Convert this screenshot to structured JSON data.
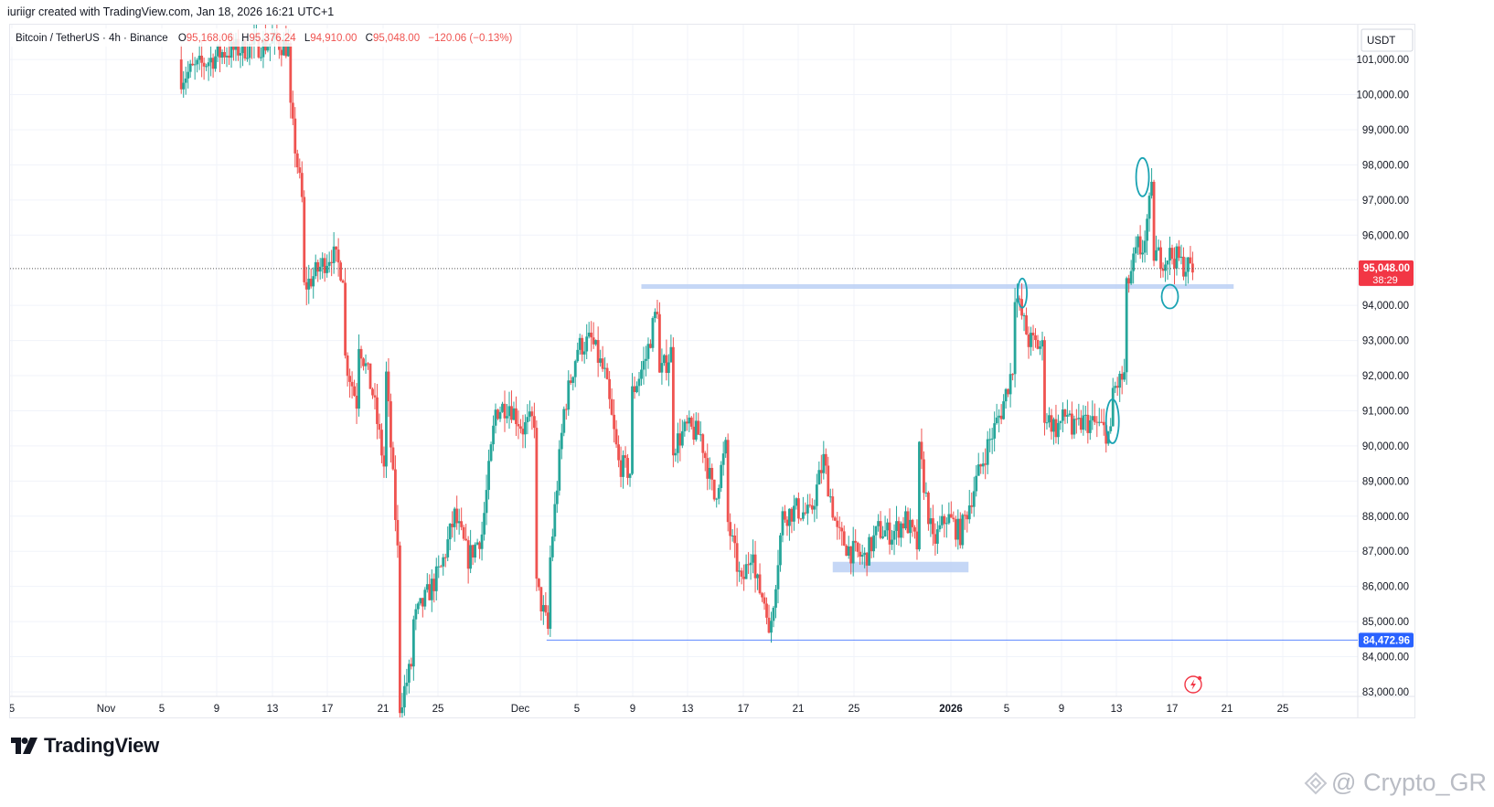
{
  "header": {
    "created_text": "iuriigr created with TradingView.com, Jan 18, 2026 16:21 UTC+1"
  },
  "legend": {
    "symbol": "Bitcoin / TetherUS · 4h · Binance",
    "o_label": "O",
    "o_value": "95,168.06",
    "h_label": "H",
    "h_value": "95,376.24",
    "l_label": "L",
    "l_value": "94,910.00",
    "c_label": "C",
    "c_value": "95,048.00",
    "change": "−120.06 (−0.13%)"
  },
  "axis": {
    "currency": "USDT",
    "price_ticks": [
      "83,000.00",
      "84,000.00",
      "85,000.00",
      "86,000.00",
      "87,000.00",
      "88,000.00",
      "89,000.00",
      "90,000.00",
      "91,000.00",
      "92,000.00",
      "93,000.00",
      "94,000.00",
      "96,000.00",
      "97,000.00",
      "98,000.00",
      "99,000.00",
      "100,000.00",
      "101,000.00"
    ],
    "date_ticks": [
      "5",
      "Nov",
      "5",
      "9",
      "13",
      "17",
      "21",
      "25",
      "Dec",
      "5",
      "9",
      "13",
      "17",
      "21",
      "25",
      "2026",
      "5",
      "9",
      "13",
      "17",
      "21",
      "25"
    ],
    "current_price_label": "95,048.00",
    "countdown_label": "38:29",
    "level_label": "84,472.96"
  },
  "colors": {
    "up": "#26a69a",
    "down": "#ef5350",
    "level_line": "#2962ff",
    "price_tag": "#f23645",
    "level_tag": "#2962ff",
    "zone": "#bbd0f5",
    "pen": "#1aa3b3"
  },
  "chart_data": {
    "type": "candlestick",
    "timeframe": "4h",
    "ylim": [
      82400,
      101600
    ],
    "current_price": 95048.0,
    "horizontal_levels": [
      84472.96
    ],
    "resistance_zone": {
      "from": "Dec 9",
      "to": "Jan 21",
      "price": 94550
    },
    "support_zone": {
      "from": "Dec 23",
      "to": "Jan 1",
      "price_low": 86400,
      "price_high": 86700
    },
    "price_path": [
      {
        "date": "Nov 5",
        "price": 101000
      },
      {
        "date": "Nov 5",
        "price": 100500
      },
      {
        "date": "Nov 8",
        "price": 101200
      },
      {
        "date": "Nov 12",
        "price": 101500
      },
      {
        "date": "Nov 13",
        "price": 101300
      },
      {
        "date": "Nov 13",
        "price": 99500
      },
      {
        "date": "Nov 14",
        "price": 96500
      },
      {
        "date": "Nov 14",
        "price": 94500
      },
      {
        "date": "Nov 16",
        "price": 95500
      },
      {
        "date": "Nov 17",
        "price": 94800
      },
      {
        "date": "Nov 17",
        "price": 92500
      },
      {
        "date": "Nov 18",
        "price": 91000
      },
      {
        "date": "Nov 18",
        "price": 93000
      },
      {
        "date": "Nov 19",
        "price": 91500
      },
      {
        "date": "Nov 20",
        "price": 89000
      },
      {
        "date": "Nov 20",
        "price": 92000
      },
      {
        "date": "Nov 21",
        "price": 86000
      },
      {
        "date": "Nov 21",
        "price": 82600
      },
      {
        "date": "Nov 22",
        "price": 84000
      },
      {
        "date": "Nov 22",
        "price": 85000
      },
      {
        "date": "Nov 24",
        "price": 86500
      },
      {
        "date": "Nov 25",
        "price": 88000
      },
      {
        "date": "Nov 26",
        "price": 86800
      },
      {
        "date": "Nov 27",
        "price": 87500
      },
      {
        "date": "Nov 28",
        "price": 91000
      },
      {
        "date": "Nov 29",
        "price": 91200
      },
      {
        "date": "Nov 30",
        "price": 90500
      },
      {
        "date": "Dec 1",
        "price": 90800
      },
      {
        "date": "Dec 1",
        "price": 86000
      },
      {
        "date": "Dec 2",
        "price": 84500
      },
      {
        "date": "Dec 2",
        "price": 86800
      },
      {
        "date": "Dec 3",
        "price": 91000
      },
      {
        "date": "Dec 4",
        "price": 92800
      },
      {
        "date": "Dec 5",
        "price": 93000
      },
      {
        "date": "Dec 6",
        "price": 92000
      },
      {
        "date": "Dec 7",
        "price": 89500
      },
      {
        "date": "Dec 8",
        "price": 89200
      },
      {
        "date": "Dec 8",
        "price": 91500
      },
      {
        "date": "Dec 9",
        "price": 92500
      },
      {
        "date": "Dec 10",
        "price": 94300
      },
      {
        "date": "Dec 10",
        "price": 92000
      },
      {
        "date": "Dec 11",
        "price": 92800
      },
      {
        "date": "Dec 11",
        "price": 90000
      },
      {
        "date": "Dec 12",
        "price": 90500
      },
      {
        "date": "Dec 13",
        "price": 90300
      },
      {
        "date": "Dec 14",
        "price": 88500
      },
      {
        "date": "Dec 15",
        "price": 90200
      },
      {
        "date": "Dec 15",
        "price": 87800
      },
      {
        "date": "Dec 16",
        "price": 86000
      },
      {
        "date": "Dec 17",
        "price": 87500
      },
      {
        "date": "Dec 17",
        "price": 86200
      },
      {
        "date": "Dec 18",
        "price": 85300
      },
      {
        "date": "Dec 18",
        "price": 84472.96
      },
      {
        "date": "Dec 19",
        "price": 88000
      },
      {
        "date": "Dec 20",
        "price": 88200
      },
      {
        "date": "Dec 21",
        "price": 88000
      },
      {
        "date": "Dec 22",
        "price": 89600
      },
      {
        "date": "Dec 23",
        "price": 87500
      },
      {
        "date": "Dec 24",
        "price": 87000
      },
      {
        "date": "Dec 25",
        "price": 86800
      },
      {
        "date": "Dec 26",
        "price": 87600
      },
      {
        "date": "Dec 27",
        "price": 87500
      },
      {
        "date": "Dec 28",
        "price": 87900
      },
      {
        "date": "Dec 29",
        "price": 87000
      },
      {
        "date": "Dec 29",
        "price": 89800
      },
      {
        "date": "Dec 30",
        "price": 87200
      },
      {
        "date": "Dec 31",
        "price": 88000
      },
      {
        "date": "Jan 1",
        "price": 87500
      },
      {
        "date": "Jan 2",
        "price": 88800
      },
      {
        "date": "Jan 3",
        "price": 90000
      },
      {
        "date": "Jan 4",
        "price": 91000
      },
      {
        "date": "Jan 5",
        "price": 92500
      },
      {
        "date": "Jan 5",
        "price": 94400
      },
      {
        "date": "Jan 6",
        "price": 93000
      },
      {
        "date": "Jan 7",
        "price": 92800
      },
      {
        "date": "Jan 7",
        "price": 91000
      },
      {
        "date": "Jan 8",
        "price": 90500
      },
      {
        "date": "Jan 9",
        "price": 91000
      },
      {
        "date": "Jan 9",
        "price": 90300
      },
      {
        "date": "Jan 10",
        "price": 90700
      },
      {
        "date": "Jan 11",
        "price": 90600
      },
      {
        "date": "Jan 12",
        "price": 90300
      },
      {
        "date": "Jan 12",
        "price": 91500
      },
      {
        "date": "Jan 13",
        "price": 92000
      },
      {
        "date": "Jan 13",
        "price": 94200
      },
      {
        "date": "Jan 14",
        "price": 95700
      },
      {
        "date": "Jan 14",
        "price": 94800
      },
      {
        "date": "Jan 15",
        "price": 97200
      },
      {
        "date": "Jan 15",
        "price": 95500
      },
      {
        "date": "Jan 16",
        "price": 95300
      },
      {
        "date": "Jan 16",
        "price": 94700
      },
      {
        "date": "Jan 16",
        "price": 95500
      },
      {
        "date": "Jan 17",
        "price": 95300
      },
      {
        "date": "Jan 17",
        "price": 95200
      },
      {
        "date": "Jan 18",
        "price": 95048
      }
    ]
  }
}
